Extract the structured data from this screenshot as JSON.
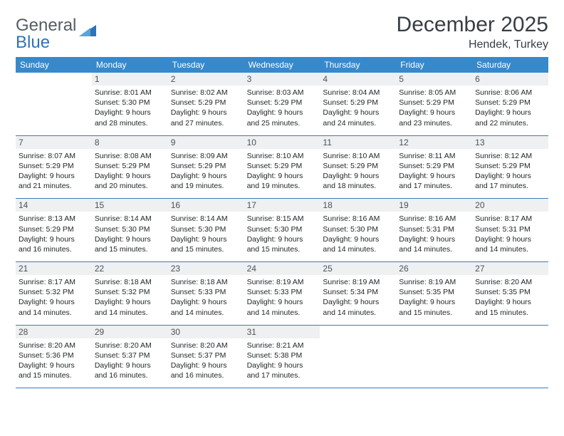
{
  "logo": {
    "text1": "General",
    "text2": "Blue"
  },
  "title": "December 2025",
  "location": "Hendek, Turkey",
  "colors": {
    "header_bg": "#3789cc",
    "header_text": "#ffffff",
    "daynum_bg": "#eef0f1",
    "week_border": "#3a7db8",
    "logo_gray": "#555d63",
    "logo_blue": "#2d73b8",
    "body_text": "#222729"
  },
  "weekdays": [
    "Sunday",
    "Monday",
    "Tuesday",
    "Wednesday",
    "Thursday",
    "Friday",
    "Saturday"
  ],
  "weeks": [
    [
      null,
      {
        "n": "1",
        "sr": "Sunrise: 8:01 AM",
        "ss": "Sunset: 5:30 PM",
        "d1": "Daylight: 9 hours",
        "d2": "and 28 minutes."
      },
      {
        "n": "2",
        "sr": "Sunrise: 8:02 AM",
        "ss": "Sunset: 5:29 PM",
        "d1": "Daylight: 9 hours",
        "d2": "and 27 minutes."
      },
      {
        "n": "3",
        "sr": "Sunrise: 8:03 AM",
        "ss": "Sunset: 5:29 PM",
        "d1": "Daylight: 9 hours",
        "d2": "and 25 minutes."
      },
      {
        "n": "4",
        "sr": "Sunrise: 8:04 AM",
        "ss": "Sunset: 5:29 PM",
        "d1": "Daylight: 9 hours",
        "d2": "and 24 minutes."
      },
      {
        "n": "5",
        "sr": "Sunrise: 8:05 AM",
        "ss": "Sunset: 5:29 PM",
        "d1": "Daylight: 9 hours",
        "d2": "and 23 minutes."
      },
      {
        "n": "6",
        "sr": "Sunrise: 8:06 AM",
        "ss": "Sunset: 5:29 PM",
        "d1": "Daylight: 9 hours",
        "d2": "and 22 minutes."
      }
    ],
    [
      {
        "n": "7",
        "sr": "Sunrise: 8:07 AM",
        "ss": "Sunset: 5:29 PM",
        "d1": "Daylight: 9 hours",
        "d2": "and 21 minutes."
      },
      {
        "n": "8",
        "sr": "Sunrise: 8:08 AM",
        "ss": "Sunset: 5:29 PM",
        "d1": "Daylight: 9 hours",
        "d2": "and 20 minutes."
      },
      {
        "n": "9",
        "sr": "Sunrise: 8:09 AM",
        "ss": "Sunset: 5:29 PM",
        "d1": "Daylight: 9 hours",
        "d2": "and 19 minutes."
      },
      {
        "n": "10",
        "sr": "Sunrise: 8:10 AM",
        "ss": "Sunset: 5:29 PM",
        "d1": "Daylight: 9 hours",
        "d2": "and 19 minutes."
      },
      {
        "n": "11",
        "sr": "Sunrise: 8:10 AM",
        "ss": "Sunset: 5:29 PM",
        "d1": "Daylight: 9 hours",
        "d2": "and 18 minutes."
      },
      {
        "n": "12",
        "sr": "Sunrise: 8:11 AM",
        "ss": "Sunset: 5:29 PM",
        "d1": "Daylight: 9 hours",
        "d2": "and 17 minutes."
      },
      {
        "n": "13",
        "sr": "Sunrise: 8:12 AM",
        "ss": "Sunset: 5:29 PM",
        "d1": "Daylight: 9 hours",
        "d2": "and 17 minutes."
      }
    ],
    [
      {
        "n": "14",
        "sr": "Sunrise: 8:13 AM",
        "ss": "Sunset: 5:29 PM",
        "d1": "Daylight: 9 hours",
        "d2": "and 16 minutes."
      },
      {
        "n": "15",
        "sr": "Sunrise: 8:14 AM",
        "ss": "Sunset: 5:30 PM",
        "d1": "Daylight: 9 hours",
        "d2": "and 15 minutes."
      },
      {
        "n": "16",
        "sr": "Sunrise: 8:14 AM",
        "ss": "Sunset: 5:30 PM",
        "d1": "Daylight: 9 hours",
        "d2": "and 15 minutes."
      },
      {
        "n": "17",
        "sr": "Sunrise: 8:15 AM",
        "ss": "Sunset: 5:30 PM",
        "d1": "Daylight: 9 hours",
        "d2": "and 15 minutes."
      },
      {
        "n": "18",
        "sr": "Sunrise: 8:16 AM",
        "ss": "Sunset: 5:30 PM",
        "d1": "Daylight: 9 hours",
        "d2": "and 14 minutes."
      },
      {
        "n": "19",
        "sr": "Sunrise: 8:16 AM",
        "ss": "Sunset: 5:31 PM",
        "d1": "Daylight: 9 hours",
        "d2": "and 14 minutes."
      },
      {
        "n": "20",
        "sr": "Sunrise: 8:17 AM",
        "ss": "Sunset: 5:31 PM",
        "d1": "Daylight: 9 hours",
        "d2": "and 14 minutes."
      }
    ],
    [
      {
        "n": "21",
        "sr": "Sunrise: 8:17 AM",
        "ss": "Sunset: 5:32 PM",
        "d1": "Daylight: 9 hours",
        "d2": "and 14 minutes."
      },
      {
        "n": "22",
        "sr": "Sunrise: 8:18 AM",
        "ss": "Sunset: 5:32 PM",
        "d1": "Daylight: 9 hours",
        "d2": "and 14 minutes."
      },
      {
        "n": "23",
        "sr": "Sunrise: 8:18 AM",
        "ss": "Sunset: 5:33 PM",
        "d1": "Daylight: 9 hours",
        "d2": "and 14 minutes."
      },
      {
        "n": "24",
        "sr": "Sunrise: 8:19 AM",
        "ss": "Sunset: 5:33 PM",
        "d1": "Daylight: 9 hours",
        "d2": "and 14 minutes."
      },
      {
        "n": "25",
        "sr": "Sunrise: 8:19 AM",
        "ss": "Sunset: 5:34 PM",
        "d1": "Daylight: 9 hours",
        "d2": "and 14 minutes."
      },
      {
        "n": "26",
        "sr": "Sunrise: 8:19 AM",
        "ss": "Sunset: 5:35 PM",
        "d1": "Daylight: 9 hours",
        "d2": "and 15 minutes."
      },
      {
        "n": "27",
        "sr": "Sunrise: 8:20 AM",
        "ss": "Sunset: 5:35 PM",
        "d1": "Daylight: 9 hours",
        "d2": "and 15 minutes."
      }
    ],
    [
      {
        "n": "28",
        "sr": "Sunrise: 8:20 AM",
        "ss": "Sunset: 5:36 PM",
        "d1": "Daylight: 9 hours",
        "d2": "and 15 minutes."
      },
      {
        "n": "29",
        "sr": "Sunrise: 8:20 AM",
        "ss": "Sunset: 5:37 PM",
        "d1": "Daylight: 9 hours",
        "d2": "and 16 minutes."
      },
      {
        "n": "30",
        "sr": "Sunrise: 8:20 AM",
        "ss": "Sunset: 5:37 PM",
        "d1": "Daylight: 9 hours",
        "d2": "and 16 minutes."
      },
      {
        "n": "31",
        "sr": "Sunrise: 8:21 AM",
        "ss": "Sunset: 5:38 PM",
        "d1": "Daylight: 9 hours",
        "d2": "and 17 minutes."
      },
      null,
      null,
      null
    ]
  ]
}
